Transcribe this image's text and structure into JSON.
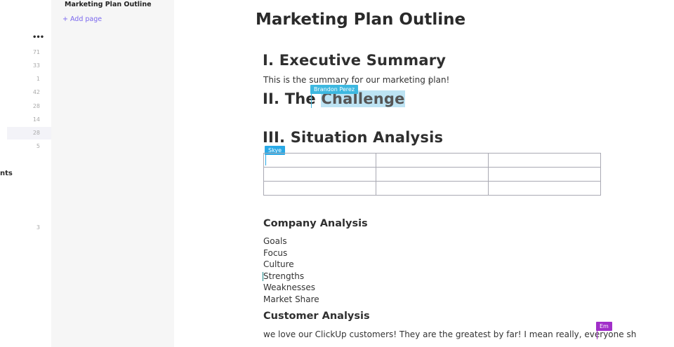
{
  "left_strip": {
    "more_label": "•••",
    "counts": [
      "71",
      "33",
      "1",
      "42",
      "28",
      "14",
      "28",
      "5"
    ],
    "section_fragment": "nts",
    "bottom_count": "3"
  },
  "sidebar": {
    "page_title": "Marketing Plan Outline",
    "add_page": "+ Add page"
  },
  "doc": {
    "title": "Marketing Plan Outline",
    "h1": "I. Executive Summary",
    "summary": "This is the summary for our marketing plan!",
    "h2_prefix": "II. The ",
    "h2_selected": "Challenge",
    "h3": "III. Situation Analysis",
    "table": {
      "rows": 3,
      "cols": 3
    },
    "company_heading": "Company Analysis",
    "company_items": [
      "Goals",
      "Focus",
      "Culture",
      "Strengths",
      "Weaknesses",
      "Market Share"
    ],
    "customer_heading": "Customer Analysis",
    "customer_text": "we love our ClickUp customers! They are the greatest by far! I mean really, everyone sh"
  },
  "collaborators": [
    {
      "name": "Brandon Perez",
      "color": "#3db8e0"
    },
    {
      "name": "Skye",
      "color": "#29a9e6"
    },
    {
      "name": "Em",
      "color": "#a12fc9"
    }
  ],
  "colors": {
    "accent": "#7b68ee",
    "selection": "#bde3f3"
  }
}
